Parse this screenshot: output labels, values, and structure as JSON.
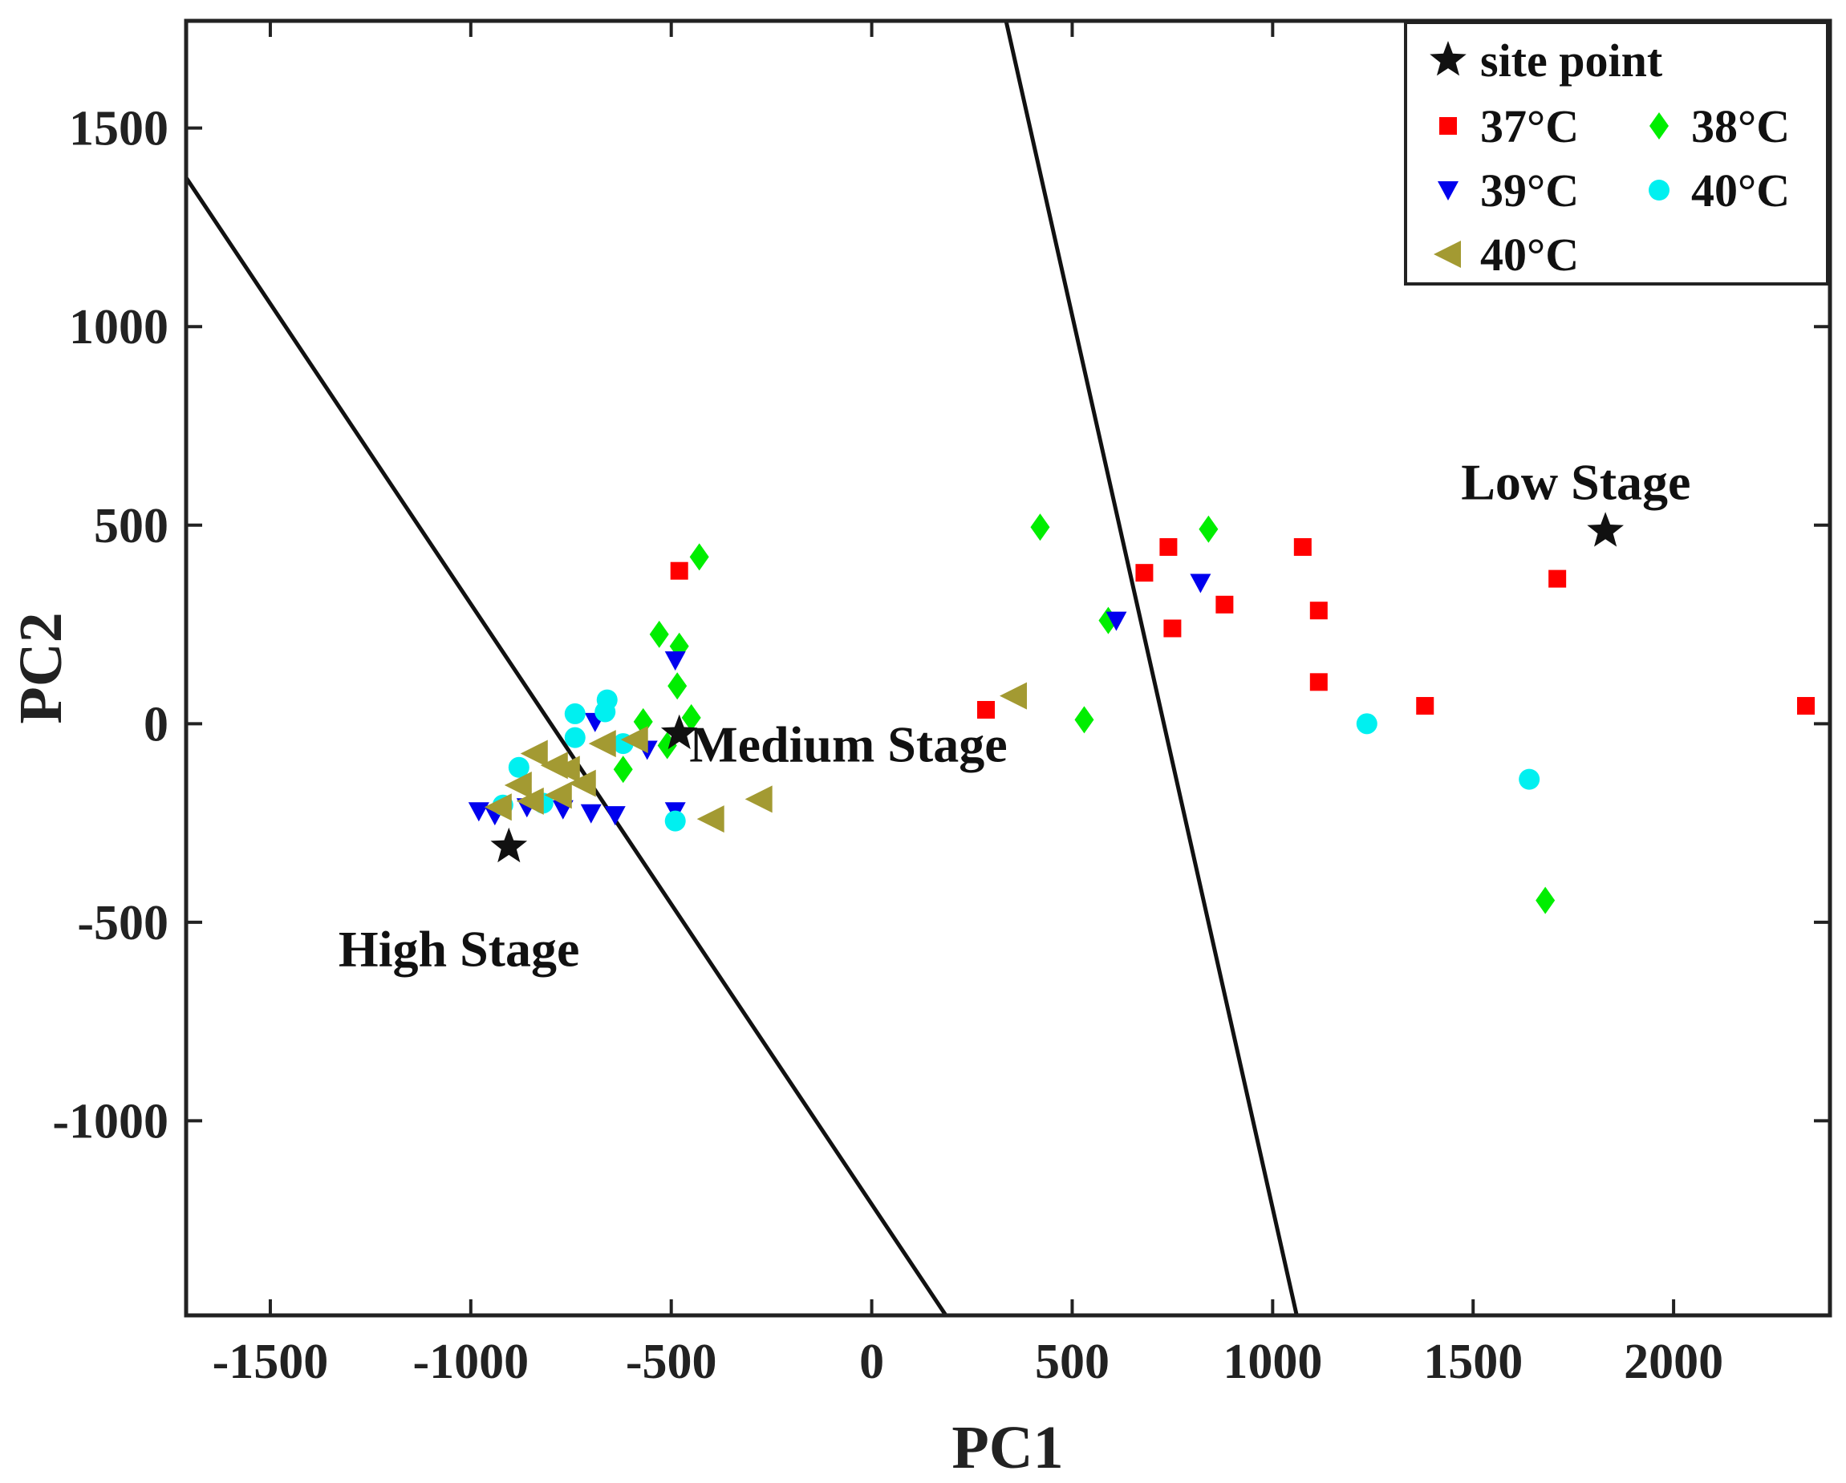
{
  "chart_data": {
    "type": "scatter",
    "title": "",
    "xlabel": "PC1",
    "ylabel": "PC2",
    "xlim": [
      -1710,
      2390
    ],
    "ylim": [
      -1490,
      1770
    ],
    "x_ticks": [
      -1500,
      -1000,
      -500,
      0,
      500,
      1000,
      1500,
      2000
    ],
    "y_ticks": [
      -1000,
      -500,
      0,
      500,
      1000,
      1500
    ],
    "grid": false,
    "legend_position": "top-right",
    "site_point_label": "site point",
    "site_points": [
      {
        "x": -905,
        "y": -310
      },
      {
        "x": -480,
        "y": -25
      },
      {
        "x": 1830,
        "y": 485
      }
    ],
    "stage_labels": [
      {
        "text": "High Stage",
        "x": -1330,
        "y": -610
      },
      {
        "text": "Medium Stage",
        "x": -455,
        "y": -95
      },
      {
        "text": "Low Stage",
        "x": 1470,
        "y": 565
      }
    ],
    "boundary_lines": [
      {
        "x1": -1710,
        "y1": 1375,
        "x2": 185,
        "y2": -1490
      },
      {
        "x1": 335,
        "y1": 1770,
        "x2": 1060,
        "y2": -1490
      }
    ],
    "series": [
      {
        "name": "37°C",
        "marker": "square",
        "color": "#ff0000",
        "points": [
          {
            "x": -480,
            "y": 385
          },
          {
            "x": 285,
            "y": 35
          },
          {
            "x": 680,
            "y": 380
          },
          {
            "x": 740,
            "y": 445
          },
          {
            "x": 750,
            "y": 240
          },
          {
            "x": 880,
            "y": 300
          },
          {
            "x": 1075,
            "y": 445
          },
          {
            "x": 1115,
            "y": 285
          },
          {
            "x": 1115,
            "y": 105
          },
          {
            "x": 1380,
            "y": 45
          },
          {
            "x": 1710,
            "y": 365
          },
          {
            "x": 2330,
            "y": 45
          }
        ]
      },
      {
        "name": "38°C",
        "marker": "diamond",
        "color": "#00ee00",
        "points": [
          {
            "x": -430,
            "y": 420
          },
          {
            "x": -530,
            "y": 225
          },
          {
            "x": -480,
            "y": 195
          },
          {
            "x": -485,
            "y": 95
          },
          {
            "x": -570,
            "y": 5
          },
          {
            "x": -450,
            "y": 15
          },
          {
            "x": -510,
            "y": -55
          },
          {
            "x": -620,
            "y": -115
          },
          {
            "x": 420,
            "y": 495
          },
          {
            "x": 530,
            "y": 10
          },
          {
            "x": 590,
            "y": 260
          },
          {
            "x": 840,
            "y": 490
          },
          {
            "x": 1680,
            "y": -445
          }
        ]
      },
      {
        "name": "39°C",
        "marker": "triangle-down",
        "color": "#0000ee",
        "points": [
          {
            "x": -980,
            "y": -220
          },
          {
            "x": -940,
            "y": -230
          },
          {
            "x": -860,
            "y": -210
          },
          {
            "x": -770,
            "y": -215
          },
          {
            "x": -700,
            "y": -225
          },
          {
            "x": -640,
            "y": -230
          },
          {
            "x": -690,
            "y": 5
          },
          {
            "x": -560,
            "y": -65
          },
          {
            "x": -490,
            "y": -220
          },
          {
            "x": -490,
            "y": 160
          },
          {
            "x": 610,
            "y": 260
          },
          {
            "x": 820,
            "y": 355
          }
        ]
      },
      {
        "name": "40°C",
        "marker": "circle",
        "color": "#00f0f0",
        "points": [
          {
            "x": -740,
            "y": 25
          },
          {
            "x": -660,
            "y": 60
          },
          {
            "x": -665,
            "y": 30
          },
          {
            "x": -740,
            "y": -35
          },
          {
            "x": -620,
            "y": -50
          },
          {
            "x": -880,
            "y": -110
          },
          {
            "x": -820,
            "y": -200
          },
          {
            "x": -920,
            "y": -205
          },
          {
            "x": -490,
            "y": -245
          },
          {
            "x": 1235,
            "y": 0
          },
          {
            "x": 1640,
            "y": -140
          }
        ]
      },
      {
        "name": "40°C",
        "marker": "triangle-left",
        "color": "#a39a32",
        "points": [
          {
            "x": -930,
            "y": -210
          },
          {
            "x": -880,
            "y": -155
          },
          {
            "x": -840,
            "y": -75
          },
          {
            "x": -790,
            "y": -105
          },
          {
            "x": -760,
            "y": -115
          },
          {
            "x": -720,
            "y": -150
          },
          {
            "x": -670,
            "y": -50
          },
          {
            "x": -590,
            "y": -40
          },
          {
            "x": -850,
            "y": -195
          },
          {
            "x": -780,
            "y": -180
          },
          {
            "x": -400,
            "y": -240
          },
          {
            "x": -280,
            "y": -190
          },
          {
            "x": 355,
            "y": 70
          }
        ]
      }
    ]
  }
}
